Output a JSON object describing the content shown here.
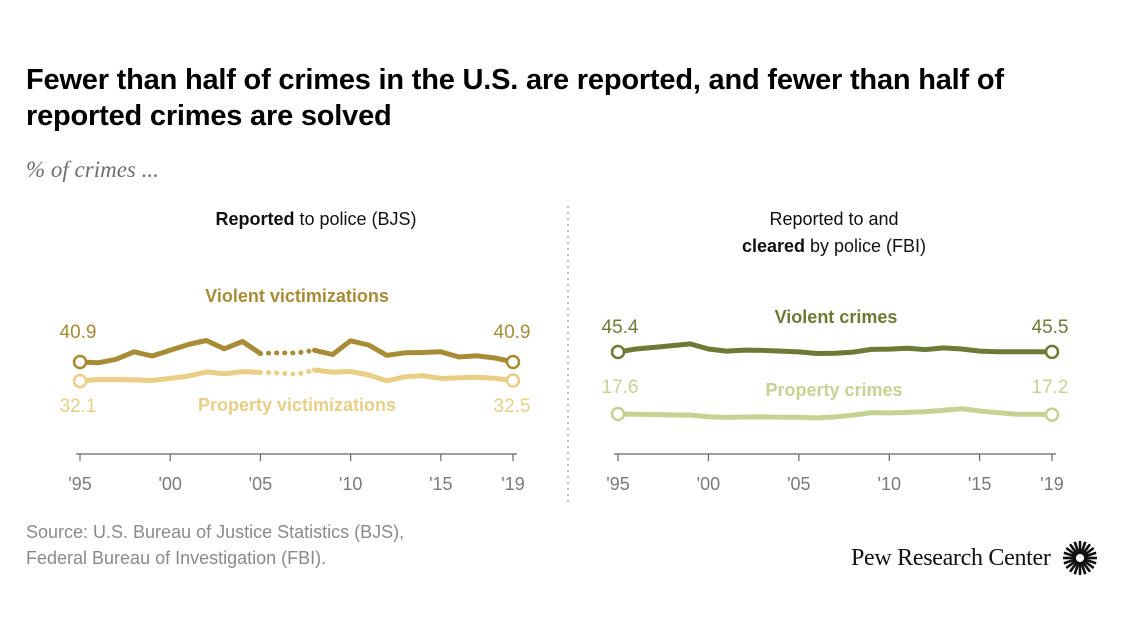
{
  "title": "Fewer than half of crimes in the U.S. are reported, and fewer than half of reported crimes are solved",
  "subtitle": "% of crimes ...",
  "source": {
    "line1": "Source: U.S. Bureau of Justice Statistics (BJS),",
    "line2": "Federal Bureau of Investigation (FBI)."
  },
  "logo_text": "Pew Research Center",
  "colors": {
    "violent_bjs": "#a88b35",
    "property_bjs": "#e9cf86",
    "violent_fbi": "#6c7a35",
    "property_fbi": "#c6d294",
    "axis": "#666666",
    "tick_label": "#7a7a7a",
    "divider": "#9a9a9a"
  },
  "chart_data": [
    {
      "type": "line",
      "panel": "left",
      "title_bold": "Reported",
      "title_rest": " to police (BJS)",
      "x_range": [
        1995,
        2019
      ],
      "ylim": [
        0,
        100
      ],
      "tick_values": [
        1995,
        2000,
        2005,
        2010,
        2015,
        2019
      ],
      "tick_labels": [
        "'95",
        "'00",
        "'05",
        "'10",
        "'15",
        "'19"
      ],
      "break_years": [
        2006,
        2007
      ],
      "series": [
        {
          "name": "Violent victimizations",
          "color_key": "violent_bjs",
          "x": [
            1995,
            1996,
            1997,
            1998,
            1999,
            2000,
            2001,
            2002,
            2003,
            2004,
            2005,
            2006,
            2007,
            2008,
            2009,
            2010,
            2011,
            2012,
            2013,
            2014,
            2015,
            2016,
            2017,
            2018,
            2019
          ],
          "values": [
            40.9,
            40.6,
            42.0,
            45.0,
            43.3,
            45.6,
            47.9,
            49.5,
            46.2,
            49.1,
            44.3,
            44.6,
            44.5,
            45.6,
            43.9,
            49.4,
            47.7,
            43.6,
            44.6,
            44.7,
            45.0,
            42.9,
            43.4,
            42.5,
            40.9
          ]
        },
        {
          "name": "Property victimizations",
          "color_key": "property_bjs",
          "x": [
            1995,
            1996,
            1997,
            1998,
            1999,
            2000,
            2001,
            2002,
            2003,
            2004,
            2005,
            2006,
            2007,
            2008,
            2009,
            2010,
            2011,
            2012,
            2013,
            2014,
            2015,
            2016,
            2017,
            2018,
            2019
          ],
          "values": [
            32.1,
            33.2,
            33.2,
            33.0,
            32.5,
            34.3,
            36.0,
            39.4,
            37.9,
            39.6,
            39.0,
            38.5,
            37.5,
            40.9,
            39.2,
            39.7,
            36.9,
            32.3,
            35.5,
            36.4,
            34.1,
            34.7,
            35.1,
            34.2,
            32.5
          ]
        }
      ],
      "labels": {
        "violent_start": "40.9",
        "violent_end": "40.9",
        "property_start": "32.1",
        "property_end": "32.5"
      }
    },
    {
      "type": "line",
      "panel": "right",
      "title_line1": "Reported to and",
      "title_bold": "cleared",
      "title_rest": " by police (FBI)",
      "x_range": [
        1995,
        2019
      ],
      "ylim": [
        0,
        100
      ],
      "tick_values": [
        1995,
        2000,
        2005,
        2010,
        2015,
        2019
      ],
      "tick_labels": [
        "'95",
        "'00",
        "'05",
        "'10",
        "'15",
        "'19"
      ],
      "series": [
        {
          "name": "Violent crimes",
          "color_key": "violent_fbi",
          "x": [
            1995,
            1996,
            1997,
            1998,
            1999,
            2000,
            2001,
            2002,
            2003,
            2004,
            2005,
            2006,
            2007,
            2008,
            2009,
            2010,
            2011,
            2012,
            2013,
            2014,
            2015,
            2016,
            2017,
            2018,
            2019
          ],
          "values": [
            45.4,
            47.4,
            48.5,
            49.7,
            50.8,
            47.4,
            46.0,
            46.7,
            46.5,
            46.0,
            45.5,
            44.4,
            44.6,
            45.3,
            47.1,
            47.3,
            47.9,
            47.0,
            48.1,
            47.4,
            46.0,
            45.6,
            45.6,
            45.6,
            45.5
          ]
        },
        {
          "name": "Property crimes",
          "color_key": "property_fbi",
          "x": [
            1995,
            1996,
            1997,
            1998,
            1999,
            2000,
            2001,
            2002,
            2003,
            2004,
            2005,
            2006,
            2007,
            2008,
            2009,
            2010,
            2011,
            2012,
            2013,
            2014,
            2015,
            2016,
            2017,
            2018,
            2019
          ],
          "values": [
            17.6,
            17.5,
            17.3,
            17.0,
            16.9,
            15.9,
            15.5,
            15.7,
            15.8,
            15.6,
            15.6,
            15.1,
            15.8,
            16.9,
            18.5,
            18.3,
            18.6,
            19.0,
            19.9,
            20.9,
            19.5,
            18.5,
            17.5,
            17.4,
            17.2
          ]
        }
      ],
      "labels": {
        "violent_start": "45.4",
        "violent_end": "45.5",
        "property_start": "17.6",
        "property_end": "17.2"
      }
    }
  ]
}
